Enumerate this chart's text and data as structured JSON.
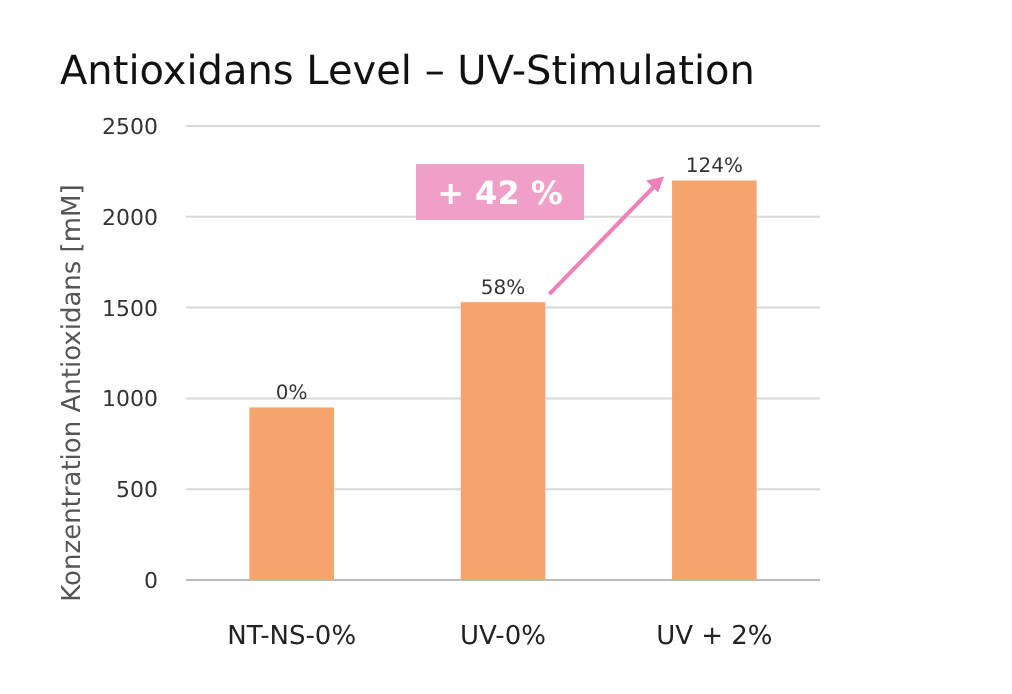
{
  "chart_data": {
    "type": "bar",
    "title": "Antioxidans Level – UV-Stimulation",
    "ylabel": "Konzentration Antioxidans  [mM]",
    "categories": [
      "NT-NS-0%",
      "UV-0%",
      "UV + 2%"
    ],
    "values": [
      950,
      1530,
      2200
    ],
    "color": "#f4a46c",
    "ylim": [
      0,
      2500
    ],
    "yticks": [
      0,
      500,
      1000,
      1500,
      2000,
      2500
    ],
    "grid": "y",
    "annotations": [
      "+ 42 %",
      {
        "text": "0%",
        "x": "NT-NS-0%",
        "y": 950
      },
      {
        "text": "58%",
        "x": "UV-0%",
        "y": 1530
      },
      {
        "text": "124%",
        "x": "UV + 2%",
        "y": 2200
      }
    ]
  }
}
